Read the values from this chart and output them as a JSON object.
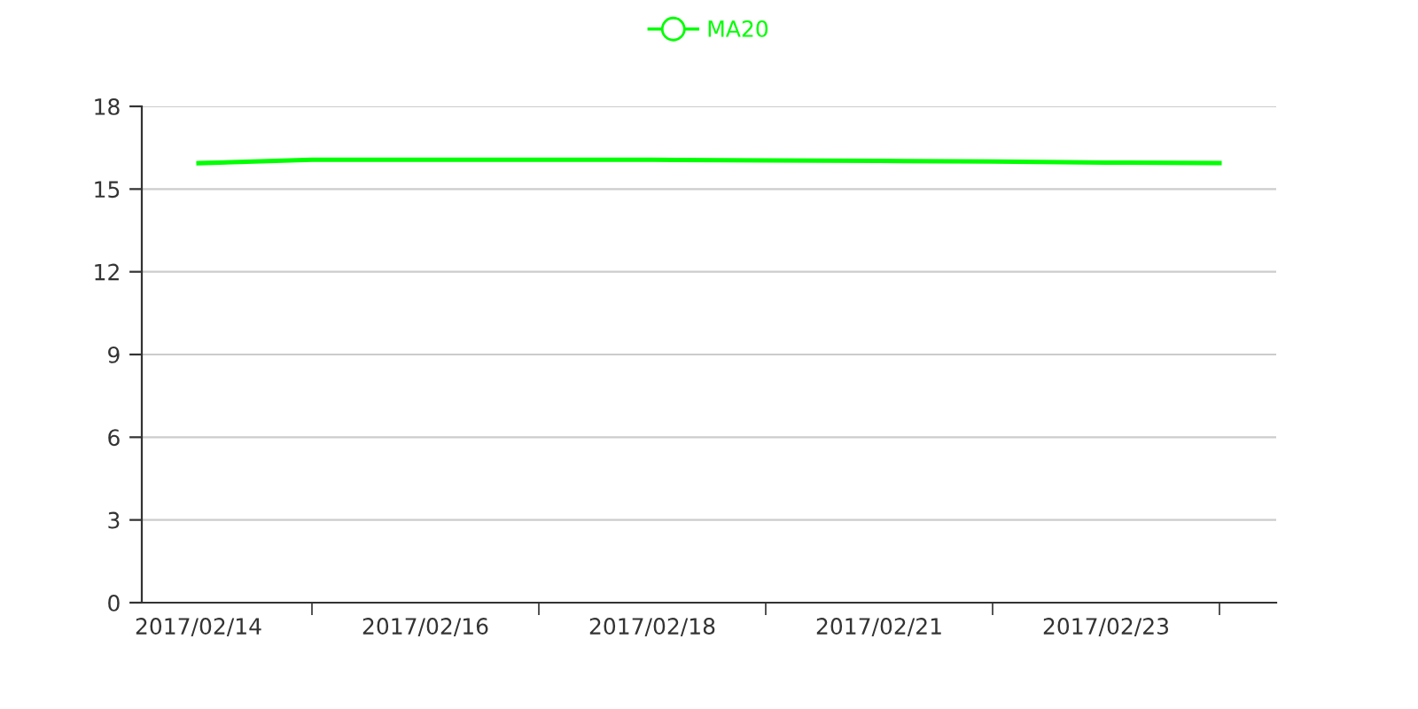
{
  "chart_data": {
    "type": "line",
    "categories": [
      "2017/02/14",
      null,
      "2017/02/16",
      null,
      "2017/02/18",
      null,
      "2017/02/21",
      null,
      "2017/02/23",
      null
    ],
    "series": [
      {
        "name": "MA20",
        "color": "#00ff00",
        "values": [
          15.94,
          16.06,
          16.06,
          16.06,
          16.06,
          16.04,
          16.02,
          16.0,
          15.96,
          15.94
        ]
      }
    ],
    "ylim": [
      0,
      18
    ],
    "yticks": [
      0,
      3,
      6,
      9,
      12,
      15,
      18
    ],
    "grid": "y",
    "legend": "top",
    "marker": "none",
    "line_style": "solid"
  }
}
